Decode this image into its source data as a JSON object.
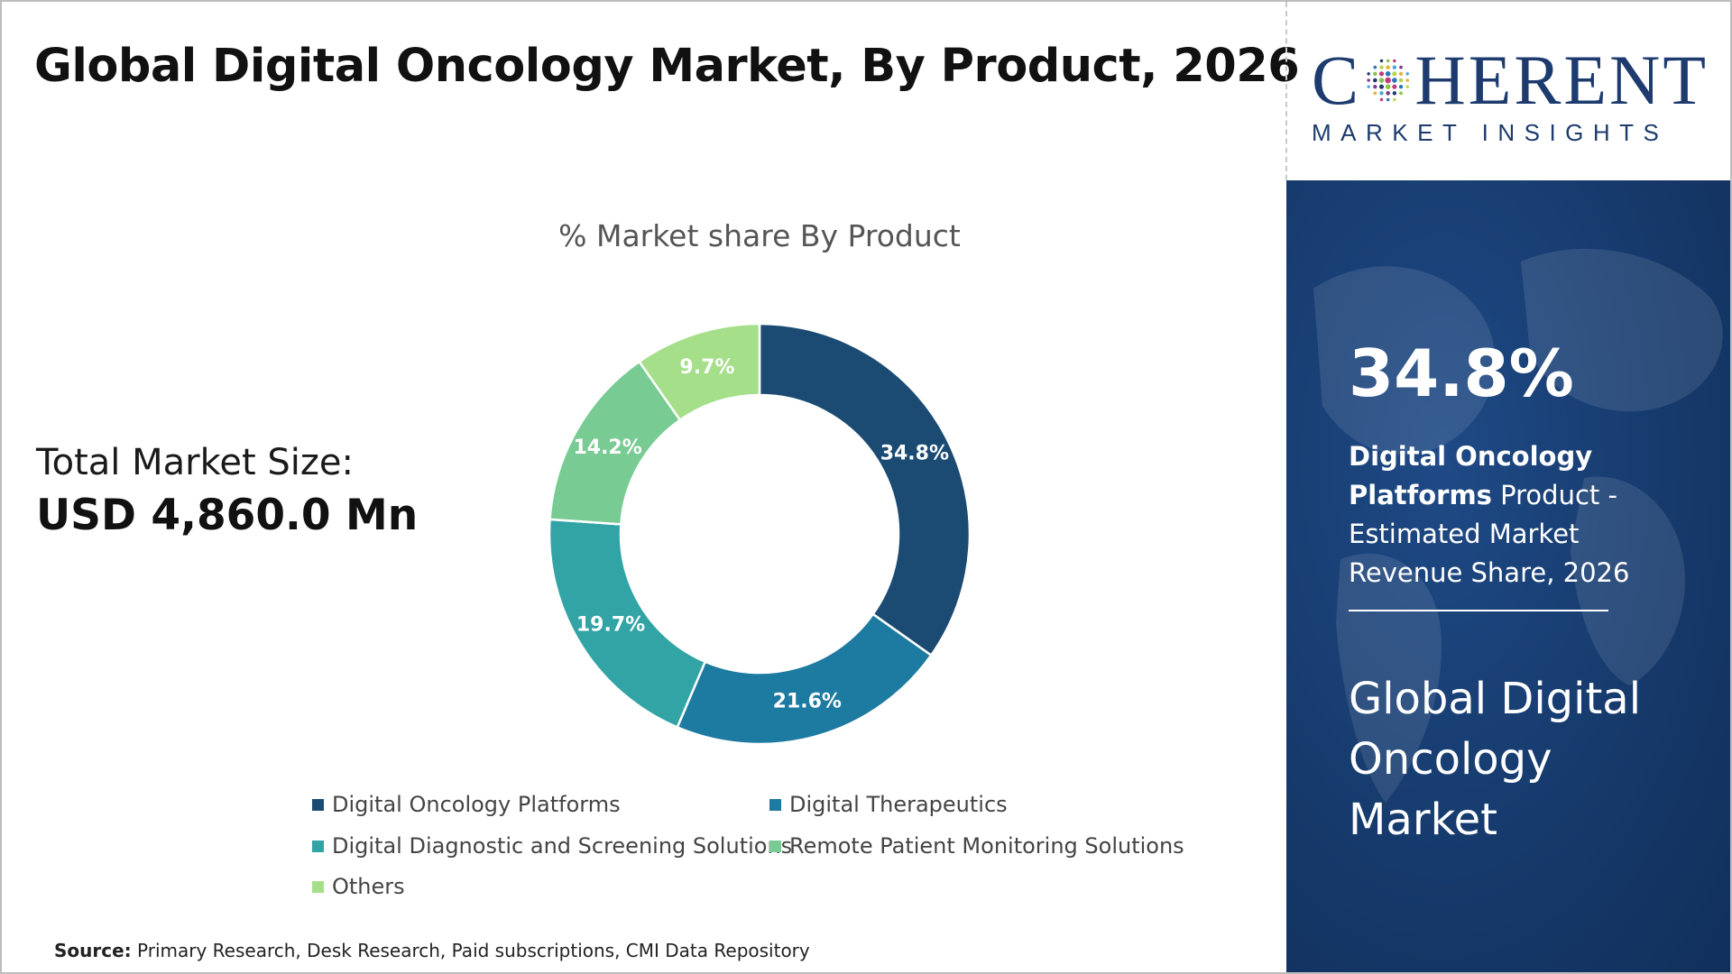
{
  "title": "Global Digital Oncology Market, By Product, 2026",
  "logo": {
    "top_before": "C",
    "top_after": "HERENT",
    "subtitle": "MARKET INSIGHTS"
  },
  "total_market": {
    "label": "Total Market Size:",
    "value": "USD 4,860.0 Mn"
  },
  "source": {
    "label": "Source:",
    "text": "Primary Research, Desk Research, Paid subscriptions, CMI Data Repository"
  },
  "side_panel": {
    "highlight_value": "34.8%",
    "desc_bold": "Digital Oncology Platforms",
    "desc_rest": "Product - Estimated Market Revenue Share, 2026",
    "market_name": "Global Digital Oncology Market"
  },
  "chart_data": {
    "type": "pie",
    "variant": "donut",
    "title": "% Market share By Product",
    "unit": "%",
    "start_angle": "12 o'clock",
    "direction": "clockwise",
    "legend_position": "bottom",
    "slices": [
      {
        "name": "Digital Oncology Platforms",
        "value": 34.8,
        "label": "34.8%",
        "color": "#1b4b73"
      },
      {
        "name": "Digital Therapeutics",
        "value": 21.6,
        "label": "21.6%",
        "color": "#1d7aa0"
      },
      {
        "name": "Digital Diagnostic and Screening Solutions",
        "value": 19.7,
        "label": "19.7%",
        "color": "#33a4a6"
      },
      {
        "name": "Remote Patient Monitoring Solutions",
        "value": 14.2,
        "label": "14.2%",
        "color": "#78cb93"
      },
      {
        "name": "Others",
        "value": 9.7,
        "label": "9.7%",
        "color": "#a5df89"
      }
    ]
  },
  "colors": {
    "side_panel": "#163a6c",
    "logo": "#1d3b6e"
  }
}
